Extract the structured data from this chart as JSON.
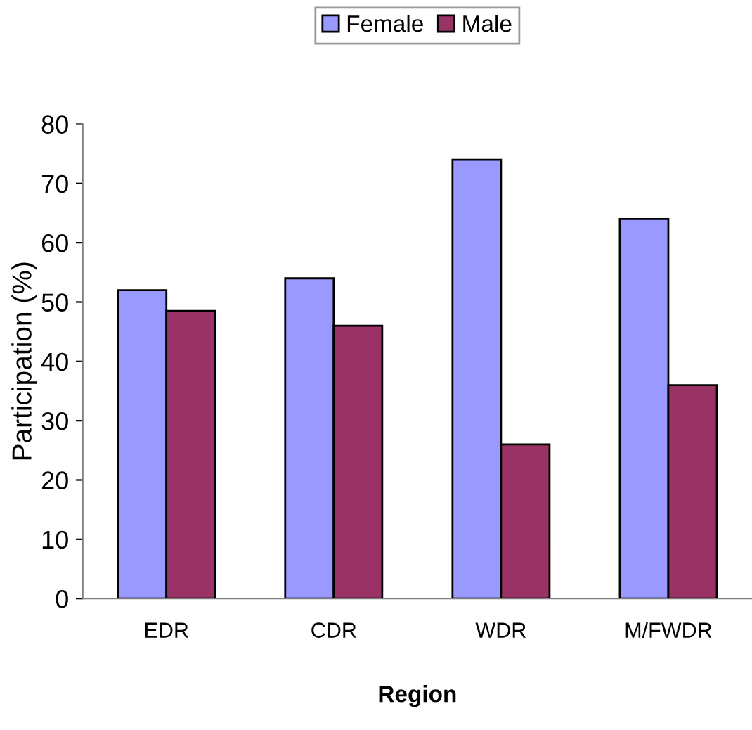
{
  "chart_data": {
    "type": "bar",
    "xlabel": "Region",
    "ylabel": "Participation (%)",
    "categories": [
      "EDR",
      "CDR",
      "WDR",
      "M/FWDR"
    ],
    "series": [
      {
        "name": "Female",
        "color": "#9999ff",
        "values": [
          52,
          54,
          74,
          64
        ]
      },
      {
        "name": "Male",
        "color": "#993366",
        "values": [
          48.5,
          46,
          26,
          36
        ]
      }
    ],
    "ylim": [
      0,
      80
    ],
    "yticks": [
      0,
      10,
      20,
      30,
      40,
      50,
      60,
      70,
      80
    ],
    "grid": false,
    "legend": "top"
  }
}
